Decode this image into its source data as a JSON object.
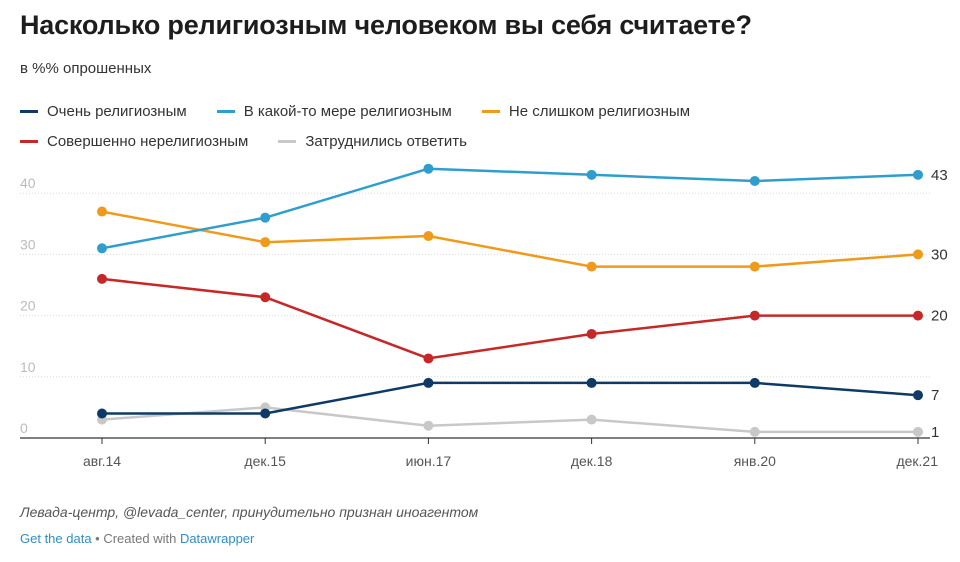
{
  "header": {
    "title": "Насколько религиозным человеком вы себя считаете?",
    "subtitle": "в %% опрошенных"
  },
  "chart_data": {
    "type": "line",
    "x": [
      "авг.14",
      "дек.15",
      "июн.17",
      "дек.18",
      "янв.20",
      "дек.21"
    ],
    "ylim": [
      0,
      45
    ],
    "yticks": [
      0,
      10,
      20,
      30,
      40
    ],
    "grid": true,
    "legend_placement": "top-left",
    "series": [
      {
        "name": "Очень религиозным",
        "color": "#0f3a66",
        "values": [
          4,
          4,
          9,
          9,
          9,
          7
        ],
        "end_label": "7"
      },
      {
        "name": "В какой-то мере религиозным",
        "color": "#2f9ecf",
        "values": [
          31,
          36,
          44,
          43,
          42,
          43
        ],
        "end_label": "43"
      },
      {
        "name": "Не слишком религиозным",
        "color": "#f09a1c",
        "values": [
          37,
          32,
          33,
          28,
          28,
          30
        ],
        "end_label": "30"
      },
      {
        "name": "Совершенно нерелигиозным",
        "color": "#c62828",
        "values": [
          26,
          23,
          13,
          17,
          20,
          20
        ],
        "end_label": "20"
      },
      {
        "name": "Затруднились ответить",
        "color": "#c8c8c8",
        "values": [
          3,
          5,
          2,
          3,
          1,
          1
        ],
        "end_label": "1"
      }
    ]
  },
  "footer": {
    "source": "Левада-центр, @levada_center, принудительно признан иноагентом",
    "get_data": "Get the data",
    "separator": " • Created with ",
    "created_with": "Datawrapper"
  }
}
